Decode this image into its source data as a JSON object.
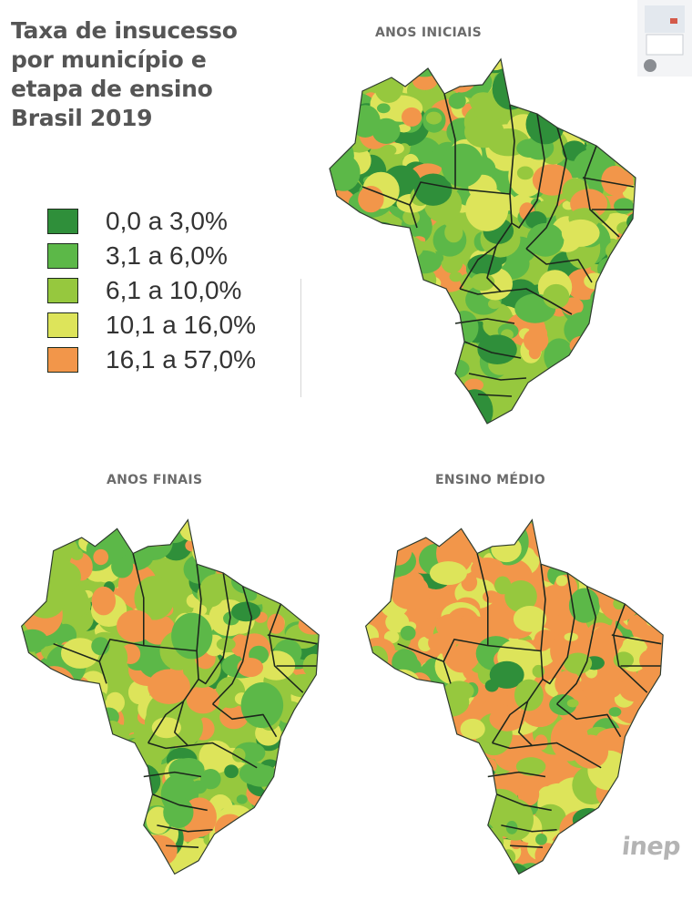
{
  "title_lines": [
    "Taxa de insucesso",
    "por município e",
    "etapa de ensino",
    "Brasil 2019"
  ],
  "legend": [
    {
      "label": "0,0 a 3,0%",
      "color": "#2f8f3a"
    },
    {
      "label": "3,1 a 6,0%",
      "color": "#5cb848"
    },
    {
      "label": "6,1 a 10,0%",
      "color": "#96c83e"
    },
    {
      "label": "10,1 a 16,0%",
      "color": "#dde45a"
    },
    {
      "label": "16,1 a 57,0%",
      "color": "#f2964a"
    }
  ],
  "maps": [
    {
      "title": "ANOS INICIAIS",
      "dominant_class": "3,1 a 6,0%"
    },
    {
      "title": "ANOS FINAIS",
      "dominant_class": "6,1 a 10,0%"
    },
    {
      "title": "ENSINO MÉDIO",
      "dominant_class": "16,1 a 57,0%"
    }
  ],
  "logo_text": "inep"
}
